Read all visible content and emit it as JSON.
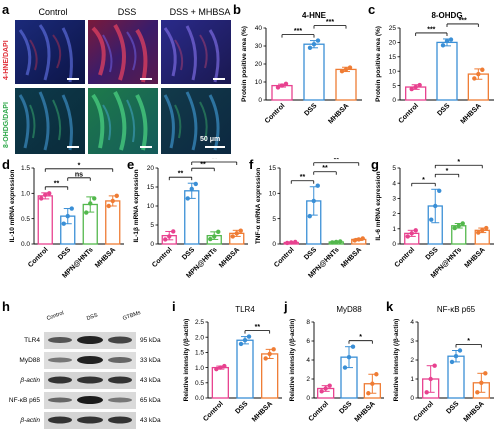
{
  "panel_letters": {
    "a": "a",
    "b": "b",
    "c": "c",
    "d": "d",
    "e": "e",
    "f": "f",
    "g": "g",
    "h": "h",
    "i": "i",
    "j": "j",
    "k": "k"
  },
  "panel_a": {
    "columns": [
      "Control",
      "DSS",
      "DSS + MHBSA"
    ],
    "row_labels": [
      "4-HNE/DAPI",
      "8-OHDG/DAPI"
    ],
    "scale_bar": "50 μm"
  },
  "colors": {
    "control": "#e8418f",
    "dss": "#3a8fd6",
    "mpn": "#53b84c",
    "mhbsa": "#ef7c34"
  },
  "panel_h": {
    "lanes": [
      "Control",
      "DSS",
      "GTBMs"
    ],
    "rows": [
      {
        "name": "TLR4",
        "size": "95 kDa"
      },
      {
        "name": "MyD88",
        "size": "33 kDa"
      },
      {
        "name": "β-actin",
        "size": "43 kDa"
      },
      {
        "name": "NF-κB p65",
        "size": "65 kDa"
      },
      {
        "name": "β-actin",
        "size": "43 kDa"
      }
    ]
  },
  "chart_data": [
    {
      "id": "b",
      "type": "bar",
      "title": "4-HNE",
      "ylabel": "Protein positive area (%)",
      "categories": [
        "Control",
        "DSS",
        "MHBSA"
      ],
      "values": [
        8,
        31,
        17
      ],
      "err": [
        0.8,
        2,
        1.2
      ],
      "points": [
        [
          7,
          8,
          9
        ],
        [
          29,
          31,
          33
        ],
        [
          16,
          17,
          18
        ]
      ],
      "ylim": [
        0,
        40
      ],
      "yticks": [
        0,
        10,
        20,
        30,
        40
      ],
      "sig": [
        {
          "a": 0,
          "b": 1,
          "t": "***"
        },
        {
          "a": 1,
          "b": 2,
          "t": "***"
        }
      ]
    },
    {
      "id": "c",
      "type": "bar",
      "title": "8-OHDG",
      "ylabel": "Protein positive area (%)",
      "categories": [
        "Control",
        "DSS",
        "MHBSA"
      ],
      "values": [
        4.5,
        20,
        9
      ],
      "err": [
        0.8,
        1.2,
        1.8
      ],
      "points": [
        [
          3.8,
          4.5,
          5.2
        ],
        [
          19,
          20.5,
          21
        ],
        [
          7.5,
          9,
          10.5
        ]
      ],
      "ylim": [
        0,
        25
      ],
      "yticks": [
        0,
        5,
        10,
        15,
        20,
        25
      ],
      "sig": [
        {
          "a": 0,
          "b": 1,
          "t": "***"
        },
        {
          "a": 1,
          "b": 2,
          "t": "***"
        }
      ]
    },
    {
      "id": "d",
      "type": "bar",
      "ylabel": "IL-10 mRNA expression",
      "categories": [
        "Control",
        "DSS",
        "MPN@HNTs",
        "MHBSA"
      ],
      "values": [
        0.95,
        0.55,
        0.78,
        0.85
      ],
      "err": [
        0.06,
        0.15,
        0.15,
        0.1
      ],
      "points": [
        [
          0.9,
          0.97,
          1.0
        ],
        [
          0.4,
          0.55,
          0.7
        ],
        [
          0.62,
          0.8,
          0.9
        ],
        [
          0.75,
          0.85,
          0.95
        ]
      ],
      "ylim": [
        0,
        1.5
      ],
      "yticks": [
        0.0,
        0.5,
        1.0,
        1.5
      ],
      "sig": [
        {
          "a": 0,
          "b": 1,
          "t": "**"
        },
        {
          "a": 1,
          "b": 2,
          "t": "ns"
        },
        {
          "a": 0,
          "b": 3,
          "t": "*"
        }
      ]
    },
    {
      "id": "e",
      "type": "bar",
      "ylabel": "IL-1β mRNA expression",
      "categories": [
        "Control",
        "DSS",
        "MPN@HNTs",
        "MHBSA"
      ],
      "values": [
        2.2,
        14,
        2.2,
        2.8
      ],
      "err": [
        1.1,
        2,
        1,
        0.8
      ],
      "points": [
        [
          1.2,
          2,
          3.3
        ],
        [
          12,
          14.5,
          15.8
        ],
        [
          1.3,
          2,
          3.2
        ],
        [
          2,
          2.8,
          3.5
        ]
      ],
      "ylim": [
        0,
        20
      ],
      "yticks": [
        0,
        5,
        10,
        15,
        20
      ],
      "sig": [
        {
          "a": 0,
          "b": 1,
          "t": "**"
        },
        {
          "a": 1,
          "b": 2,
          "t": "**"
        },
        {
          "a": 1,
          "b": 3,
          "t": "**"
        }
      ]
    },
    {
      "id": "f",
      "type": "bar",
      "ylabel": "TNF-α mRNA expression",
      "categories": [
        "Control",
        "DSS",
        "MPN@HNTs",
        "MHBSA"
      ],
      "values": [
        0.3,
        8.5,
        0.4,
        0.9
      ],
      "err": [
        0.1,
        2.8,
        0.15,
        0.2
      ],
      "points": [
        [
          0.2,
          0.3,
          0.4
        ],
        [
          5.5,
          8.5,
          11.5
        ],
        [
          0.3,
          0.4,
          0.5
        ],
        [
          0.7,
          0.9,
          1.1
        ]
      ],
      "ylim": [
        0,
        15
      ],
      "yticks": [
        0,
        5,
        10,
        15
      ],
      "sig": [
        {
          "a": 0,
          "b": 1,
          "t": "**"
        },
        {
          "a": 1,
          "b": 2,
          "t": "**"
        },
        {
          "a": 1,
          "b": 3,
          "t": "**"
        }
      ]
    },
    {
      "id": "g",
      "type": "bar",
      "ylabel": "IL-6 mRNA expression",
      "categories": [
        "Control",
        "DSS",
        "MPN@HNTs",
        "MHBSA"
      ],
      "values": [
        0.7,
        2.5,
        1.2,
        0.9
      ],
      "err": [
        0.2,
        1.1,
        0.15,
        0.15
      ],
      "points": [
        [
          0.5,
          0.7,
          0.9
        ],
        [
          1.6,
          2.5,
          3.5
        ],
        [
          1.05,
          1.2,
          1.35
        ],
        [
          0.75,
          0.9,
          1.05
        ]
      ],
      "ylim": [
        0,
        5
      ],
      "yticks": [
        0,
        1,
        2,
        3,
        4,
        5
      ],
      "sig": [
        {
          "a": 0,
          "b": 1,
          "t": "*"
        },
        {
          "a": 1,
          "b": 2,
          "t": "*"
        },
        {
          "a": 1,
          "b": 3,
          "t": "*"
        }
      ]
    },
    {
      "id": "i",
      "type": "bar",
      "title": "TLR4",
      "ylabel": "Relative intensity (/β-actin)",
      "categories": [
        "Control",
        "DSS",
        "MHBSA"
      ],
      "values": [
        1.0,
        1.9,
        1.45
      ],
      "err": [
        0.05,
        0.12,
        0.15
      ],
      "points": [
        [
          0.95,
          1.0,
          1.05
        ],
        [
          1.78,
          1.9,
          2.02
        ],
        [
          1.3,
          1.45,
          1.6
        ]
      ],
      "ylim": [
        0,
        2.5
      ],
      "yticks": [
        0.0,
        0.5,
        1.0,
        1.5,
        2.0,
        2.5
      ],
      "sig": [
        {
          "a": 1,
          "b": 2,
          "t": "**"
        }
      ]
    },
    {
      "id": "j",
      "type": "bar",
      "title": "MyD88",
      "ylabel": "Relative intensity (/β-actin)",
      "categories": [
        "Control",
        "DSS",
        "MHBSA"
      ],
      "values": [
        1.0,
        4.3,
        1.5
      ],
      "err": [
        0.3,
        1.1,
        1.0
      ],
      "points": [
        [
          0.7,
          1.0,
          1.3
        ],
        [
          3.2,
          4.3,
          5.4
        ],
        [
          0.5,
          1.5,
          2.5
        ]
      ],
      "ylim": [
        0,
        8
      ],
      "yticks": [
        0,
        2,
        4,
        6,
        8
      ],
      "sig": [
        {
          "a": 1,
          "b": 2,
          "t": "*"
        }
      ]
    },
    {
      "id": "k",
      "type": "bar",
      "title": "NF-κB p65",
      "ylabel": "Relative intensity (/β-actin)",
      "categories": [
        "Control",
        "DSS",
        "MHBSA"
      ],
      "values": [
        1.0,
        2.2,
        0.8
      ],
      "err": [
        0.7,
        0.3,
        0.5
      ],
      "points": [
        [
          0.3,
          1.0,
          1.7
        ],
        [
          1.9,
          2.2,
          2.5
        ],
        [
          0.3,
          0.8,
          1.3
        ]
      ],
      "ylim": [
        0,
        4
      ],
      "yticks": [
        0,
        1,
        2,
        3,
        4
      ],
      "sig": [
        {
          "a": 1,
          "b": 2,
          "t": "*"
        }
      ]
    }
  ]
}
